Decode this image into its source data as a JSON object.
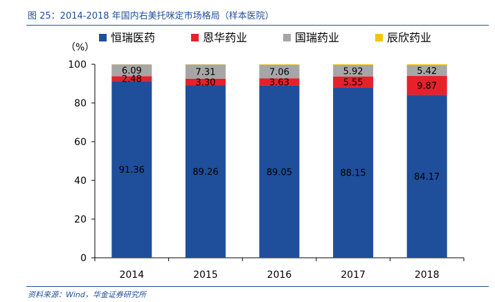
{
  "figure": {
    "title": "图 25：2014-2018 年国内右美托咪定市场格局（样本医院）",
    "source": "资料来源：Wind，华金证券研究所"
  },
  "chart_data": {
    "type": "bar",
    "stacked": true,
    "categories": [
      "2014",
      "2015",
      "2016",
      "2017",
      "2018"
    ],
    "series": [
      {
        "name": "恒瑞医药",
        "color": "#1f4e9a",
        "values": [
          91.36,
          89.26,
          89.05,
          88.15,
          84.17
        ],
        "labels": [
          "91.36",
          "89.26",
          "89.05",
          "88.15",
          "84.17"
        ]
      },
      {
        "name": "恩华药业",
        "color": "#e8202a",
        "values": [
          2.48,
          3.3,
          3.63,
          5.55,
          9.87
        ],
        "labels": [
          "2.48",
          "3.30",
          "3.63",
          "5.55",
          "9.87"
        ]
      },
      {
        "name": "国瑞药业",
        "color": "#a6a6a6",
        "values": [
          6.09,
          7.31,
          7.06,
          5.92,
          5.42
        ],
        "labels": [
          "6.09",
          "7.31",
          "7.06",
          "5.92",
          "5.42"
        ]
      },
      {
        "name": "辰欣药业",
        "color": "#f5c400",
        "values": [
          0.07,
          0.13,
          0.26,
          0.38,
          0.54
        ],
        "labels": []
      }
    ],
    "ylabel": "（%）",
    "ylim": [
      0,
      100
    ],
    "yticks": [
      0,
      20,
      40,
      60,
      80,
      100
    ],
    "legend": "top",
    "grid": false
  }
}
